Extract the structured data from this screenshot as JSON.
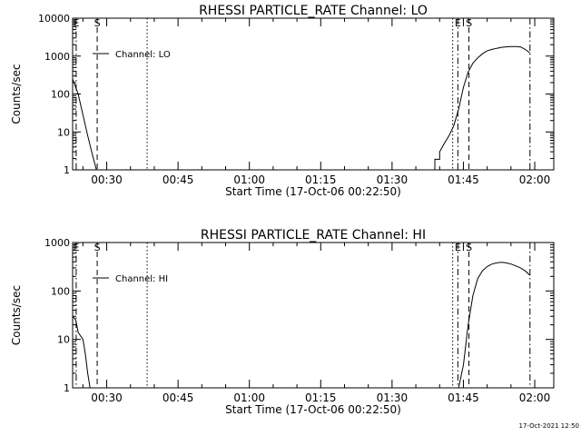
{
  "footer": {
    "timestamp": "17-Oct-2021 12:50"
  },
  "chart_data": [
    {
      "type": "line",
      "title": "RHESSI PARTICLE_RATE Channel: LO",
      "xlabel": "Start Time (17-Oct-06 00:22:50)",
      "ylabel": "Counts/sec",
      "y_scale": "log",
      "ylim": [
        1,
        10000
      ],
      "xlim": [
        "00:22:50",
        "02:04:00"
      ],
      "y_ticks": [
        {
          "value": 1,
          "label": "1"
        },
        {
          "value": 10,
          "label": "10"
        },
        {
          "value": 100,
          "label": "100"
        },
        {
          "value": 1000,
          "label": "1000"
        },
        {
          "value": 10000,
          "label": "10000"
        }
      ],
      "x_ticks": [
        {
          "time": "00:30",
          "label": "00:30"
        },
        {
          "time": "00:45",
          "label": "00:45"
        },
        {
          "time": "01:00",
          "label": "01:00"
        },
        {
          "time": "01:15",
          "label": "01:15"
        },
        {
          "time": "01:30",
          "label": "01:30"
        },
        {
          "time": "01:45",
          "label": "01:45"
        },
        {
          "time": "02:00",
          "label": "02:00"
        }
      ],
      "legend": {
        "label": "Channel: LO",
        "placement": "top-left"
      },
      "series": [
        {
          "name": "Channel: LO",
          "segments": [
            {
              "x": [
                "00:22:50",
                "00:24:00",
                "00:25:00",
                "00:26:00",
                "00:27:00",
                "00:27:50"
              ],
              "y": [
                250,
                100,
                28,
                8,
                2.5,
                1
              ]
            },
            {
              "x": [
                "01:38:00",
                "01:39:00",
                "01:39:00",
                "01:40:00",
                "01:40:00",
                "01:41:00",
                "01:42:00",
                "01:43:00",
                "01:44:00",
                "01:45:00",
                "01:46:00",
                "01:47:00",
                "01:48:00",
                "01:49:00",
                "01:50:00",
                "01:51:00",
                "01:52:00",
                "01:53:00",
                "01:54:00",
                "01:55:00",
                "01:56:00",
                "01:57:00",
                "01:58:00",
                "01:59:00"
              ],
              "y": [
                1,
                1,
                1.9,
                1.9,
                3,
                5,
                8,
                15,
                40,
                150,
                380,
                650,
                900,
                1150,
                1380,
                1500,
                1600,
                1700,
                1750,
                1780,
                1780,
                1750,
                1500,
                1200
              ]
            }
          ]
        }
      ],
      "markers": [
        {
          "time": "00:23:35",
          "style": "dash-dot",
          "label": "E"
        },
        {
          "time": "00:28:00",
          "style": "dashed",
          "label": "S"
        },
        {
          "time": "00:38:30",
          "style": "dotted",
          "label": ""
        },
        {
          "time": "01:42:45",
          "style": "dotted",
          "label": ""
        },
        {
          "time": "01:43:50",
          "style": "dash-dot",
          "label": "E"
        },
        {
          "time": "01:46:10",
          "style": "dashed",
          "label": "S"
        },
        {
          "time": "01:59:00",
          "style": "dash-dot",
          "label": ""
        }
      ]
    },
    {
      "type": "line",
      "title": "RHESSI PARTICLE_RATE Channel: HI",
      "xlabel": "Start Time (17-Oct-06 00:22:50)",
      "ylabel": "Counts/sec",
      "y_scale": "log",
      "ylim": [
        1,
        1000
      ],
      "xlim": [
        "00:22:50",
        "02:04:00"
      ],
      "y_ticks": [
        {
          "value": 1,
          "label": "1"
        },
        {
          "value": 10,
          "label": "10"
        },
        {
          "value": 100,
          "label": "100"
        },
        {
          "value": 1000,
          "label": "1000"
        }
      ],
      "x_ticks": [
        {
          "time": "00:30",
          "label": "00:30"
        },
        {
          "time": "00:45",
          "label": "00:45"
        },
        {
          "time": "01:00",
          "label": "01:00"
        },
        {
          "time": "01:15",
          "label": "01:15"
        },
        {
          "time": "01:30",
          "label": "01:30"
        },
        {
          "time": "01:45",
          "label": "01:45"
        },
        {
          "time": "02:00",
          "label": "02:00"
        }
      ],
      "legend": {
        "label": "Channel: HI",
        "placement": "top-left"
      },
      "series": [
        {
          "name": "Channel: HI",
          "segments": [
            {
              "x": [
                "00:22:50",
                "00:23:30",
                "00:24:00",
                "00:25:00",
                "00:25:30",
                "00:26:00",
                "00:26:30"
              ],
              "y": [
                30,
                25,
                14,
                10,
                5,
                2,
                1
              ]
            },
            {
              "x": [
                "01:44:00",
                "01:45:00",
                "01:46:00",
                "01:47:00",
                "01:48:00",
                "01:49:00",
                "01:50:00",
                "01:51:00",
                "01:52:00",
                "01:53:00",
                "01:54:00",
                "01:55:00",
                "01:56:00",
                "01:57:00",
                "01:58:00",
                "01:59:00"
              ],
              "y": [
                1,
                3,
                20,
                80,
                180,
                260,
                320,
                360,
                380,
                390,
                380,
                360,
                330,
                300,
                260,
                210
              ]
            }
          ]
        }
      ],
      "markers": [
        {
          "time": "00:23:35",
          "style": "dash-dot",
          "label": "E"
        },
        {
          "time": "00:28:00",
          "style": "dashed",
          "label": "S"
        },
        {
          "time": "00:38:30",
          "style": "dotted",
          "label": ""
        },
        {
          "time": "01:42:45",
          "style": "dotted",
          "label": ""
        },
        {
          "time": "01:43:50",
          "style": "dash-dot",
          "label": "E"
        },
        {
          "time": "01:46:10",
          "style": "dashed",
          "label": "S"
        },
        {
          "time": "01:59:00",
          "style": "dash-dot",
          "label": ""
        }
      ]
    }
  ]
}
